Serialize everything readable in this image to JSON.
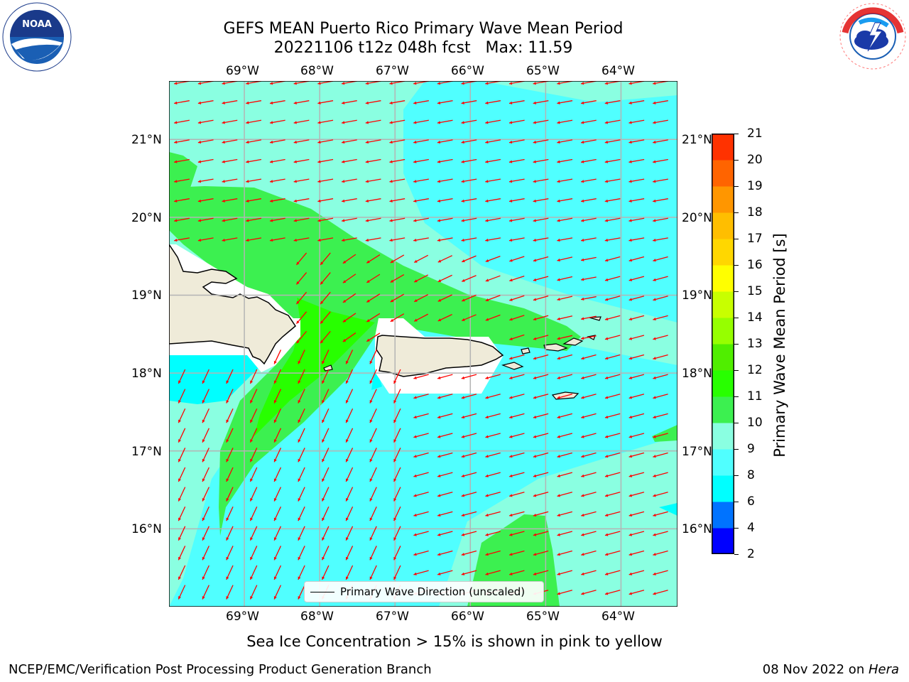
{
  "title": {
    "line1": "GEFS MEAN Puerto Rico Primary Wave Mean Period",
    "line2": "20221106 t12z 048h fcst   Max: 11.59"
  },
  "map": {
    "lon_labels": [
      "69°W",
      "68°W",
      "67°W",
      "66°W",
      "65°W",
      "64°W"
    ],
    "lat_labels": [
      "21°N",
      "20°N",
      "19°N",
      "18°N",
      "17°N",
      "16°N"
    ],
    "extent": {
      "lon_min": -70.0,
      "lon_max": -63.25,
      "lat_min": 15.0,
      "lat_max": 21.75
    },
    "arrow_color": "#ff0000",
    "land_color": "#efebd9",
    "legend_label": "Primary Wave Direction (unscaled)"
  },
  "colorbar": {
    "label": "Primary Wave Mean Period [s]",
    "ticks": [
      "2",
      "4",
      "6",
      "8",
      "9",
      "10",
      "11",
      "12",
      "13",
      "14",
      "15",
      "16",
      "17",
      "18",
      "19",
      "20",
      "21"
    ],
    "colors": [
      "#0000ff",
      "#0073ff",
      "#00ffff",
      "#50ffff",
      "#8affe1",
      "#3cf050",
      "#28ff00",
      "#50ee00",
      "#96ff00",
      "#c8ff00",
      "#ffff00",
      "#ffd700",
      "#ffbe00",
      "#ff9600",
      "#ff6400",
      "#ff3200",
      "#ff0000"
    ]
  },
  "caption": "Sea Ice Concentration > 15% is shown in pink to yellow",
  "footer": {
    "left": "NCEP/EMC/Verification Post Processing Product Generation Branch",
    "right_date": "08 Nov 2022 on ",
    "right_host": "Hera"
  },
  "logos": {
    "noaa_text": "NOAA",
    "nws_text": "NATIONAL WEATHER SERVICE"
  }
}
